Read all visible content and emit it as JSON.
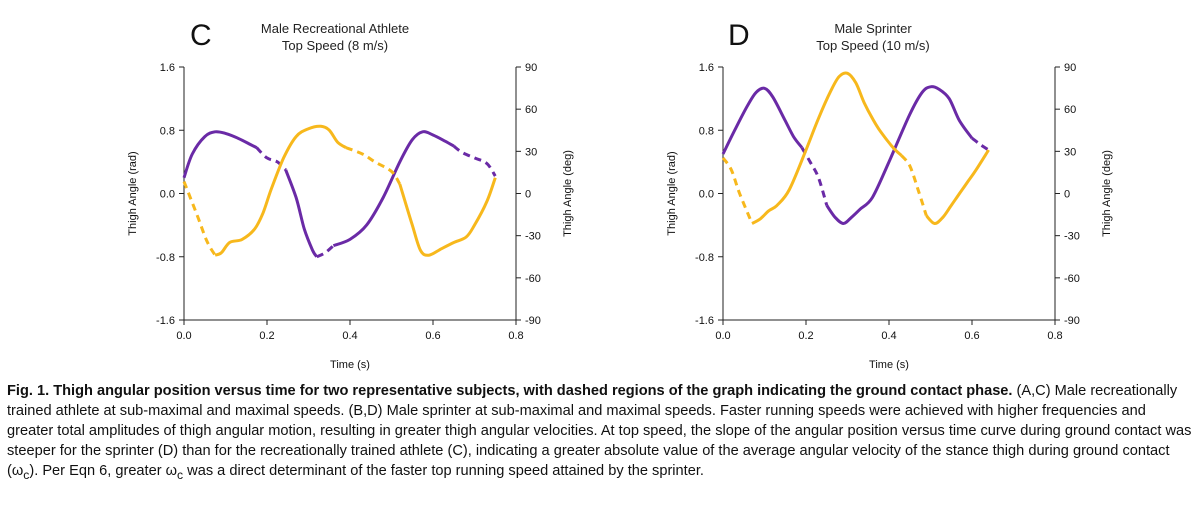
{
  "chart_data": [
    {
      "type": "line",
      "panel_label": "C",
      "title": [
        "Male Recreational Athlete",
        "Top Speed (8 m/s)"
      ],
      "xlabel": "Time (s)",
      "ylabel": "Thigh Angle (rad)",
      "ylabel_right": "Thigh Angle (deg)",
      "xlim": [
        0.0,
        0.8
      ],
      "ylim": [
        -1.6,
        1.6
      ],
      "ylim_right": [
        -90,
        90
      ],
      "x_ticks": [
        "0.0",
        "0.2",
        "0.4",
        "0.6",
        "0.8"
      ],
      "y_ticks": [
        "-1.6",
        "-0.8",
        "0.0",
        "0.8",
        "1.6"
      ],
      "y_ticks_right": [
        "-90",
        "-60",
        "-30",
        "0",
        "30",
        "60",
        "90"
      ],
      "grid": false,
      "colors": {
        "purple": "#6a2aa6",
        "gold": "#f7b81c"
      },
      "series": [
        {
          "color": "purple",
          "segments": [
            {
              "style": "solid",
              "x": [
                0.0,
                0.02,
                0.05,
                0.075,
                0.1,
                0.13,
                0.16,
                0.175
              ],
              "y": [
                0.2,
                0.5,
                0.72,
                0.78,
                0.76,
                0.7,
                0.62,
                0.58
              ]
            },
            {
              "style": "dashed",
              "x": [
                0.175,
                0.2,
                0.225,
                0.245
              ],
              "y": [
                0.58,
                0.45,
                0.4,
                0.3
              ]
            },
            {
              "style": "solid",
              "x": [
                0.245,
                0.27,
                0.29,
                0.31,
                0.32
              ],
              "y": [
                0.3,
                -0.05,
                -0.45,
                -0.72,
                -0.8
              ]
            },
            {
              "style": "dashed",
              "x": [
                0.32,
                0.34,
                0.36
              ],
              "y": [
                -0.8,
                -0.75,
                -0.66
              ]
            },
            {
              "style": "solid",
              "x": [
                0.36,
                0.4,
                0.44,
                0.48,
                0.52,
                0.55,
                0.575,
                0.6,
                0.63,
                0.65
              ],
              "y": [
                -0.66,
                -0.58,
                -0.4,
                -0.05,
                0.4,
                0.68,
                0.78,
                0.74,
                0.66,
                0.6
              ]
            },
            {
              "style": "dashed",
              "x": [
                0.65,
                0.67,
                0.7,
                0.73,
                0.75
              ],
              "y": [
                0.6,
                0.52,
                0.45,
                0.38,
                0.22
              ]
            }
          ]
        },
        {
          "color": "gold",
          "segments": [
            {
              "style": "dashed",
              "x": [
                0.0,
                0.03,
                0.055,
                0.075
              ],
              "y": [
                0.15,
                -0.25,
                -0.6,
                -0.78
              ]
            },
            {
              "style": "solid",
              "x": [
                0.075,
                0.09,
                0.11,
                0.14,
                0.17,
                0.19,
                0.21,
                0.24,
                0.27,
                0.3,
                0.33,
                0.35,
                0.37,
                0.39
              ],
              "y": [
                -0.78,
                -0.75,
                -0.62,
                -0.58,
                -0.45,
                -0.25,
                0.05,
                0.45,
                0.72,
                0.82,
                0.85,
                0.8,
                0.65,
                0.58
              ]
            },
            {
              "style": "dashed",
              "x": [
                0.39,
                0.43,
                0.46,
                0.5,
                0.52
              ],
              "y": [
                0.58,
                0.5,
                0.4,
                0.28,
                0.12
              ]
            },
            {
              "style": "solid",
              "x": [
                0.52,
                0.55,
                0.57,
                0.59,
                0.62,
                0.65,
                0.68,
                0.7,
                0.73,
                0.75
              ],
              "y": [
                0.12,
                -0.4,
                -0.72,
                -0.78,
                -0.7,
                -0.62,
                -0.55,
                -0.4,
                -0.1,
                0.2
              ]
            }
          ]
        }
      ]
    },
    {
      "type": "line",
      "panel_label": "D",
      "title": [
        "Male Sprinter",
        "Top Speed (10 m/s)"
      ],
      "xlabel": "Time (s)",
      "ylabel": "Thigh Angle (rad)",
      "ylabel_right": "Thigh Angle (deg)",
      "xlim": [
        0.0,
        0.8
      ],
      "ylim": [
        -1.6,
        1.6
      ],
      "ylim_right": [
        -90,
        90
      ],
      "x_ticks": [
        "0.0",
        "0.2",
        "0.4",
        "0.6",
        "0.8"
      ],
      "y_ticks": [
        "-1.6",
        "-0.8",
        "0.0",
        "0.8",
        "1.6"
      ],
      "y_ticks_right": [
        "-90",
        "-60",
        "-30",
        "0",
        "30",
        "60",
        "90"
      ],
      "grid": false,
      "colors": {
        "purple": "#6a2aa6",
        "gold": "#f7b81c"
      },
      "series": [
        {
          "color": "purple",
          "segments": [
            {
              "style": "solid",
              "x": [
                0.0,
                0.03,
                0.06,
                0.08,
                0.1,
                0.12,
                0.15,
                0.17,
                0.19
              ],
              "y": [
                0.5,
                0.82,
                1.12,
                1.28,
                1.33,
                1.22,
                0.92,
                0.72,
                0.58
              ]
            },
            {
              "style": "dashed",
              "x": [
                0.19,
                0.21,
                0.23,
                0.25
              ],
              "y": [
                0.58,
                0.4,
                0.2,
                -0.15
              ]
            },
            {
              "style": "solid",
              "x": [
                0.25,
                0.27,
                0.29,
                0.31,
                0.33,
                0.36,
                0.4,
                0.45,
                0.48,
                0.5,
                0.52,
                0.545,
                0.57,
                0.6
              ],
              "y": [
                -0.15,
                -0.3,
                -0.38,
                -0.3,
                -0.2,
                -0.05,
                0.4,
                1.0,
                1.28,
                1.35,
                1.32,
                1.2,
                0.92,
                0.7
              ]
            },
            {
              "style": "dashed",
              "x": [
                0.6,
                0.62,
                0.64
              ],
              "y": [
                0.7,
                0.62,
                0.55
              ]
            }
          ]
        },
        {
          "color": "gold",
          "segments": [
            {
              "style": "dashed",
              "x": [
                0.0,
                0.02,
                0.04,
                0.07
              ],
              "y": [
                0.45,
                0.3,
                0.0,
                -0.38
              ]
            },
            {
              "style": "solid",
              "x": [
                0.07,
                0.09,
                0.11,
                0.13,
                0.16,
                0.2,
                0.23,
                0.26,
                0.28,
                0.3,
                0.32,
                0.34,
                0.36,
                0.38,
                0.41,
                0.43
              ],
              "y": [
                -0.38,
                -0.32,
                -0.22,
                -0.15,
                0.05,
                0.55,
                0.95,
                1.3,
                1.48,
                1.52,
                1.4,
                1.15,
                0.95,
                0.78,
                0.58,
                0.48
              ]
            },
            {
              "style": "dashed",
              "x": [
                0.43,
                0.45,
                0.47,
                0.49
              ],
              "y": [
                0.48,
                0.35,
                0.05,
                -0.28
              ]
            },
            {
              "style": "solid",
              "x": [
                0.49,
                0.51,
                0.53,
                0.55,
                0.57,
                0.59,
                0.61,
                0.64
              ],
              "y": [
                -0.28,
                -0.38,
                -0.3,
                -0.15,
                0.0,
                0.15,
                0.3,
                0.55
              ]
            }
          ]
        }
      ]
    }
  ],
  "caption": {
    "bold": "Fig. 1. Thigh angular position versus time for two representative subjects, with dashed regions of the graph indicating the ground contact phase.",
    "text_before_omega": " (A,C) Male recreationally trained athlete at sub-maximal and maximal speeds. (B,D) Male sprinter at sub-maximal and maximal speeds. Faster running speeds were achieved with higher frequencies and greater total amplitudes of thigh angular motion, resulting in greater thigh angular velocities. At top speed, the slope of the angular position versus time curve during ground contact was steeper for the sprinter (D) than for the recreationally trained athlete (C), indicating a greater absolute value of the average angular velocity of the stance thigh during ground contact (",
    "omega": "ω",
    "omega_sub": "c",
    "text_middle": "). Per Eqn 6, greater ",
    "omega2": "ω",
    "omega2_sub": "c",
    "text_end": " was a direct determinant of the faster top running speed attained by the sprinter."
  }
}
